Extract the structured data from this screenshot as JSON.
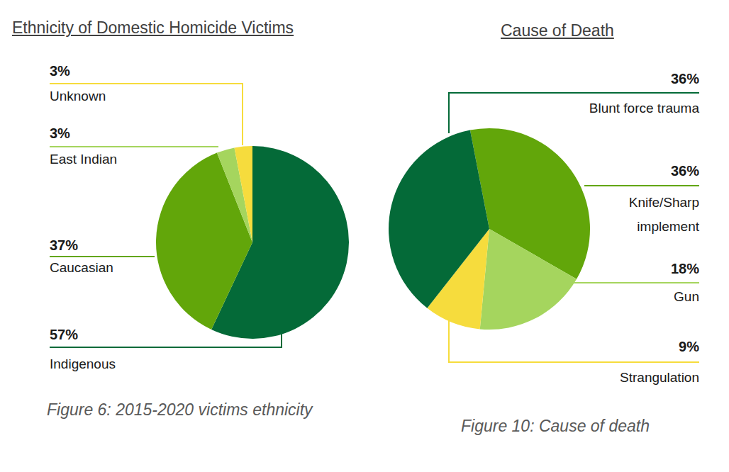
{
  "chart_data": [
    {
      "type": "pie",
      "title": "Ethnicity of Domestic Homicide Victims",
      "caption": "Figure 6: 2015-2020 victims ethnicity",
      "categories": [
        "Indigenous",
        "Caucasian",
        "East Indian",
        "Unknown"
      ],
      "values": [
        57,
        37,
        3,
        3
      ],
      "value_labels": [
        "57%",
        "37%",
        "3%",
        "3%"
      ],
      "colors": [
        "#046a38",
        "#62a60a",
        "#a5d55e",
        "#f6dc3d"
      ],
      "data_labels": true
    },
    {
      "type": "pie",
      "title": "Cause of Death",
      "caption": "Figure 10: Cause of death",
      "categories": [
        "Knife/Sharp implement",
        "Gun",
        "Strangulation",
        "Blunt force trauma"
      ],
      "values": [
        36,
        18,
        9,
        36
      ],
      "value_labels": [
        "36%",
        "18%",
        "9%",
        "36%"
      ],
      "colors": [
        "#62a60a",
        "#a5d55e",
        "#f6dc3d",
        "#046a38"
      ],
      "data_labels": true
    }
  ]
}
